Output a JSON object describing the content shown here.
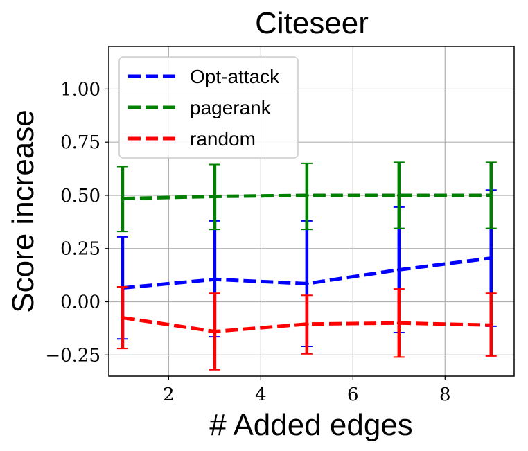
{
  "chart_data": {
    "type": "line",
    "title": "Citeseer",
    "xlabel": "# Added edges",
    "ylabel": "Score increase",
    "xlim": [
      0.7,
      9.5
    ],
    "ylim": [
      -0.35,
      1.2
    ],
    "xticks": [
      2,
      4,
      6,
      8
    ],
    "xtick_labels": [
      "2",
      "4",
      "6",
      "8"
    ],
    "yticks": [
      -0.25,
      0.0,
      0.25,
      0.5,
      0.75,
      1.0
    ],
    "ytick_labels": [
      "−0.25",
      "0.00",
      "0.25",
      "0.50",
      "0.75",
      "1.00"
    ],
    "grid": true,
    "legend_position": "top-left",
    "x": [
      1,
      3,
      5,
      7,
      9
    ],
    "series": [
      {
        "name": "Opt-attack",
        "color": "#0000ff",
        "values": [
          0.065,
          0.105,
          0.085,
          0.15,
          0.205
        ],
        "err_low": [
          -0.175,
          -0.165,
          -0.21,
          -0.145,
          -0.115
        ],
        "err_high": [
          0.305,
          0.38,
          0.38,
          0.445,
          0.525
        ]
      },
      {
        "name": "pagerank",
        "color": "#008000",
        "values": [
          0.485,
          0.495,
          0.5,
          0.5,
          0.5
        ],
        "err_low": [
          0.33,
          0.34,
          0.34,
          0.345,
          0.345
        ],
        "err_high": [
          0.635,
          0.645,
          0.65,
          0.655,
          0.655
        ]
      },
      {
        "name": "random",
        "color": "#ff0000",
        "values": [
          -0.075,
          -0.14,
          -0.105,
          -0.1,
          -0.11
        ],
        "err_low": [
          -0.22,
          -0.32,
          -0.245,
          -0.26,
          -0.255
        ],
        "err_high": [
          0.07,
          0.04,
          0.03,
          0.06,
          0.04
        ]
      }
    ]
  }
}
